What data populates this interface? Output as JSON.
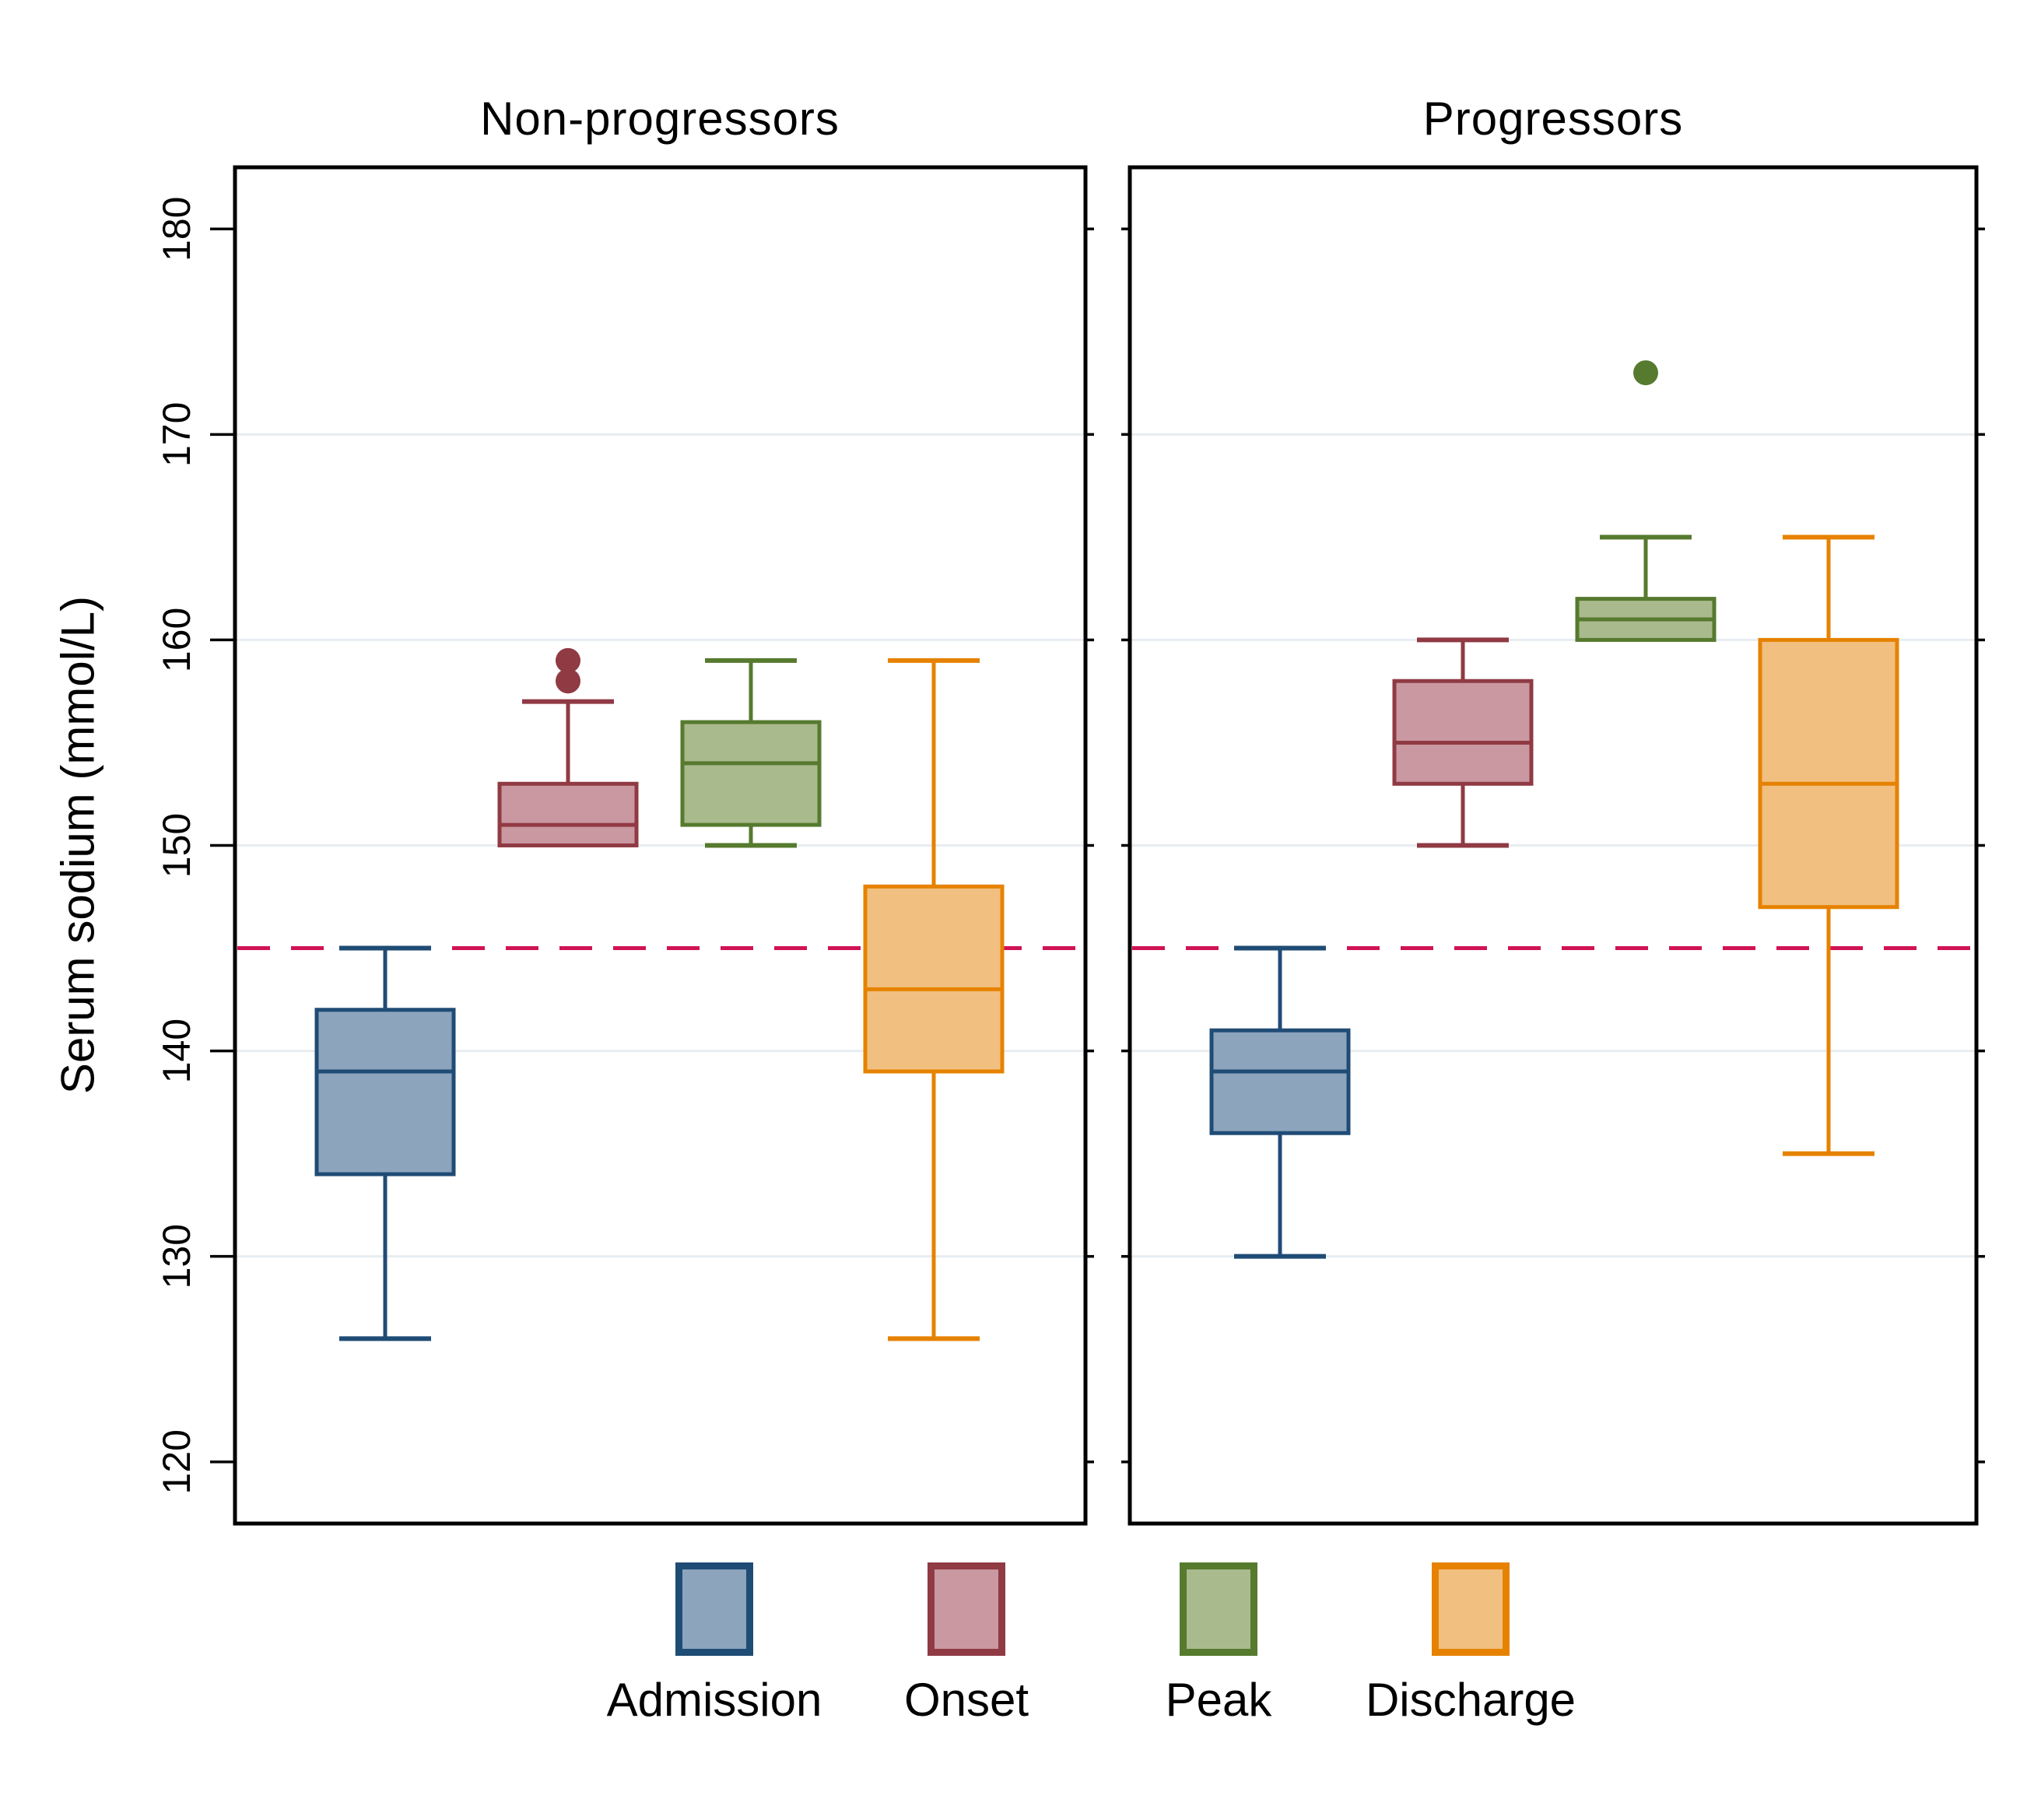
{
  "chart_data": {
    "type": "grouped_boxplot",
    "ylabel": "Serum sodium (mmol/L)",
    "ylim": [
      117,
      183
    ],
    "yticks": [
      120,
      130,
      140,
      150,
      160,
      170,
      180
    ],
    "gridlines": [
      130,
      140,
      150,
      160,
      170
    ],
    "grid_on": true,
    "grid_color": "#e7edf1",
    "background_color": "#ffffff",
    "panel_border_color": "#000000",
    "reference_line": {
      "value": 145,
      "style": "dashed",
      "color": "#d01355"
    },
    "panels": [
      {
        "title": "Non-progressors",
        "boxes": [
          {
            "series": "Admission",
            "whisker_low": 126,
            "q1": 134,
            "median": 139,
            "q3": 142,
            "whisker_high": 145,
            "outliers": []
          },
          {
            "series": "Onset",
            "whisker_low": 150,
            "q1": 150,
            "median": 151,
            "q3": 153,
            "whisker_high": 157,
            "outliers": [
              158,
              159
            ]
          },
          {
            "series": "Peak",
            "whisker_low": 150,
            "q1": 151,
            "median": 154,
            "q3": 156,
            "whisker_high": 159,
            "outliers": []
          },
          {
            "series": "Discharge",
            "whisker_low": 126,
            "q1": 139,
            "median": 143,
            "q3": 148,
            "whisker_high": 159,
            "outliers": []
          }
        ]
      },
      {
        "title": "Progressors",
        "boxes": [
          {
            "series": "Admission",
            "whisker_low": 130,
            "q1": 136,
            "median": 139,
            "q3": 141,
            "whisker_high": 145,
            "outliers": []
          },
          {
            "series": "Onset",
            "whisker_low": 150,
            "q1": 153,
            "median": 155,
            "q3": 158,
            "whisker_high": 160,
            "outliers": []
          },
          {
            "series": "Peak",
            "whisker_low": 160,
            "q1": 160,
            "median": 161,
            "q3": 162,
            "whisker_high": 165,
            "outliers": [
              173
            ]
          },
          {
            "series": "Discharge",
            "whisker_low": 135,
            "q1": 147,
            "median": 153,
            "q3": 160,
            "whisker_high": 165,
            "outliers": []
          }
        ]
      }
    ],
    "series_styles": [
      {
        "name": "Admission",
        "fill": "#8ca4bc",
        "border": "#1f4c75"
      },
      {
        "name": "Onset",
        "fill": "#ca98a0",
        "border": "#903a44"
      },
      {
        "name": "Peak",
        "fill": "#a9ba8d",
        "border": "#567a2e"
      },
      {
        "name": "Discharge",
        "fill": "#f1bf80",
        "border": "#e68200"
      }
    ],
    "legend": [
      "Admission",
      "Onset",
      "Peak",
      "Discharge"
    ],
    "legend_position": "bottom"
  }
}
